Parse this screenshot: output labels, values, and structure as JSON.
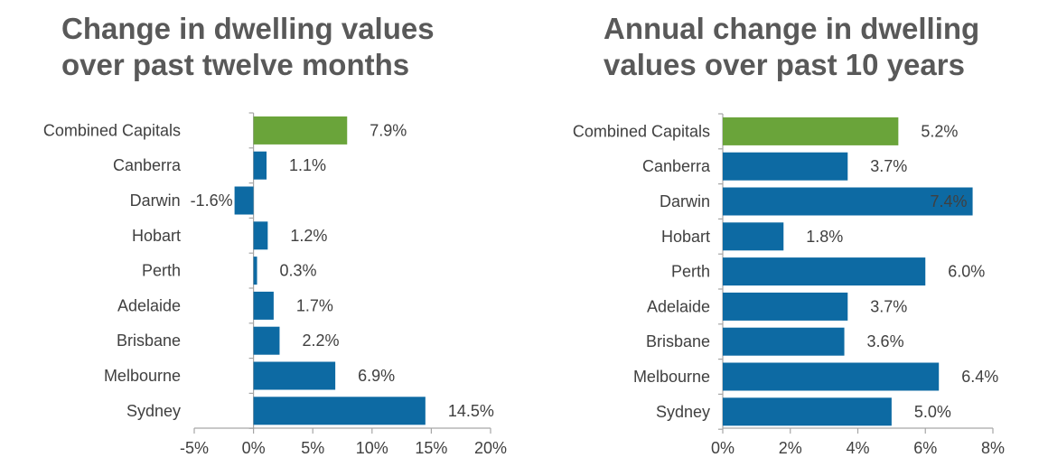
{
  "colors": {
    "highlight": "#6aa43a",
    "bar": "#0d6aa3",
    "axis": "#a6a6a6",
    "text": "#404040",
    "title": "#595959"
  },
  "chart_data": [
    {
      "type": "bar",
      "orientation": "horizontal",
      "title_lines": [
        "Change in dwelling values",
        "over past twelve months"
      ],
      "categories": [
        "Combined Capitals",
        "Canberra",
        "Darwin",
        "Hobart",
        "Perth",
        "Adelaide",
        "Brisbane",
        "Melbourne",
        "Sydney"
      ],
      "values": [
        7.9,
        1.1,
        -1.6,
        1.2,
        0.3,
        1.7,
        2.2,
        6.9,
        14.5
      ],
      "value_labels": [
        "7.9%",
        "1.1%",
        "-1.6%",
        "1.2%",
        "0.3%",
        "1.7%",
        "2.2%",
        "6.9%",
        "14.5%"
      ],
      "highlight_category": "Combined Capitals",
      "xlim": [
        -5,
        20
      ],
      "xticks": [
        -5,
        0,
        5,
        10,
        15,
        20
      ],
      "xtick_labels": [
        "-5%",
        "0%",
        "5%",
        "10%",
        "15%",
        "20%"
      ],
      "grid": false,
      "legend": "none"
    },
    {
      "type": "bar",
      "orientation": "horizontal",
      "title_lines": [
        "Annual change in dwelling",
        "values over past 10 years"
      ],
      "categories": [
        "Combined Capitals",
        "Canberra",
        "Darwin",
        "Hobart",
        "Perth",
        "Adelaide",
        "Brisbane",
        "Melbourne",
        "Sydney"
      ],
      "values": [
        5.2,
        3.7,
        7.4,
        1.8,
        6.0,
        3.7,
        3.6,
        6.4,
        5.0
      ],
      "value_labels": [
        "5.2%",
        "3.7%",
        "7.4%",
        "1.8%",
        "6.0%",
        "3.7%",
        "3.6%",
        "6.4%",
        "5.0%"
      ],
      "highlight_category": "Combined Capitals",
      "xlim": [
        0,
        8
      ],
      "xticks": [
        0,
        2,
        4,
        6,
        8
      ],
      "xtick_labels": [
        "0%",
        "2%",
        "4%",
        "6%",
        "8%"
      ],
      "grid": false,
      "legend": "none"
    }
  ]
}
